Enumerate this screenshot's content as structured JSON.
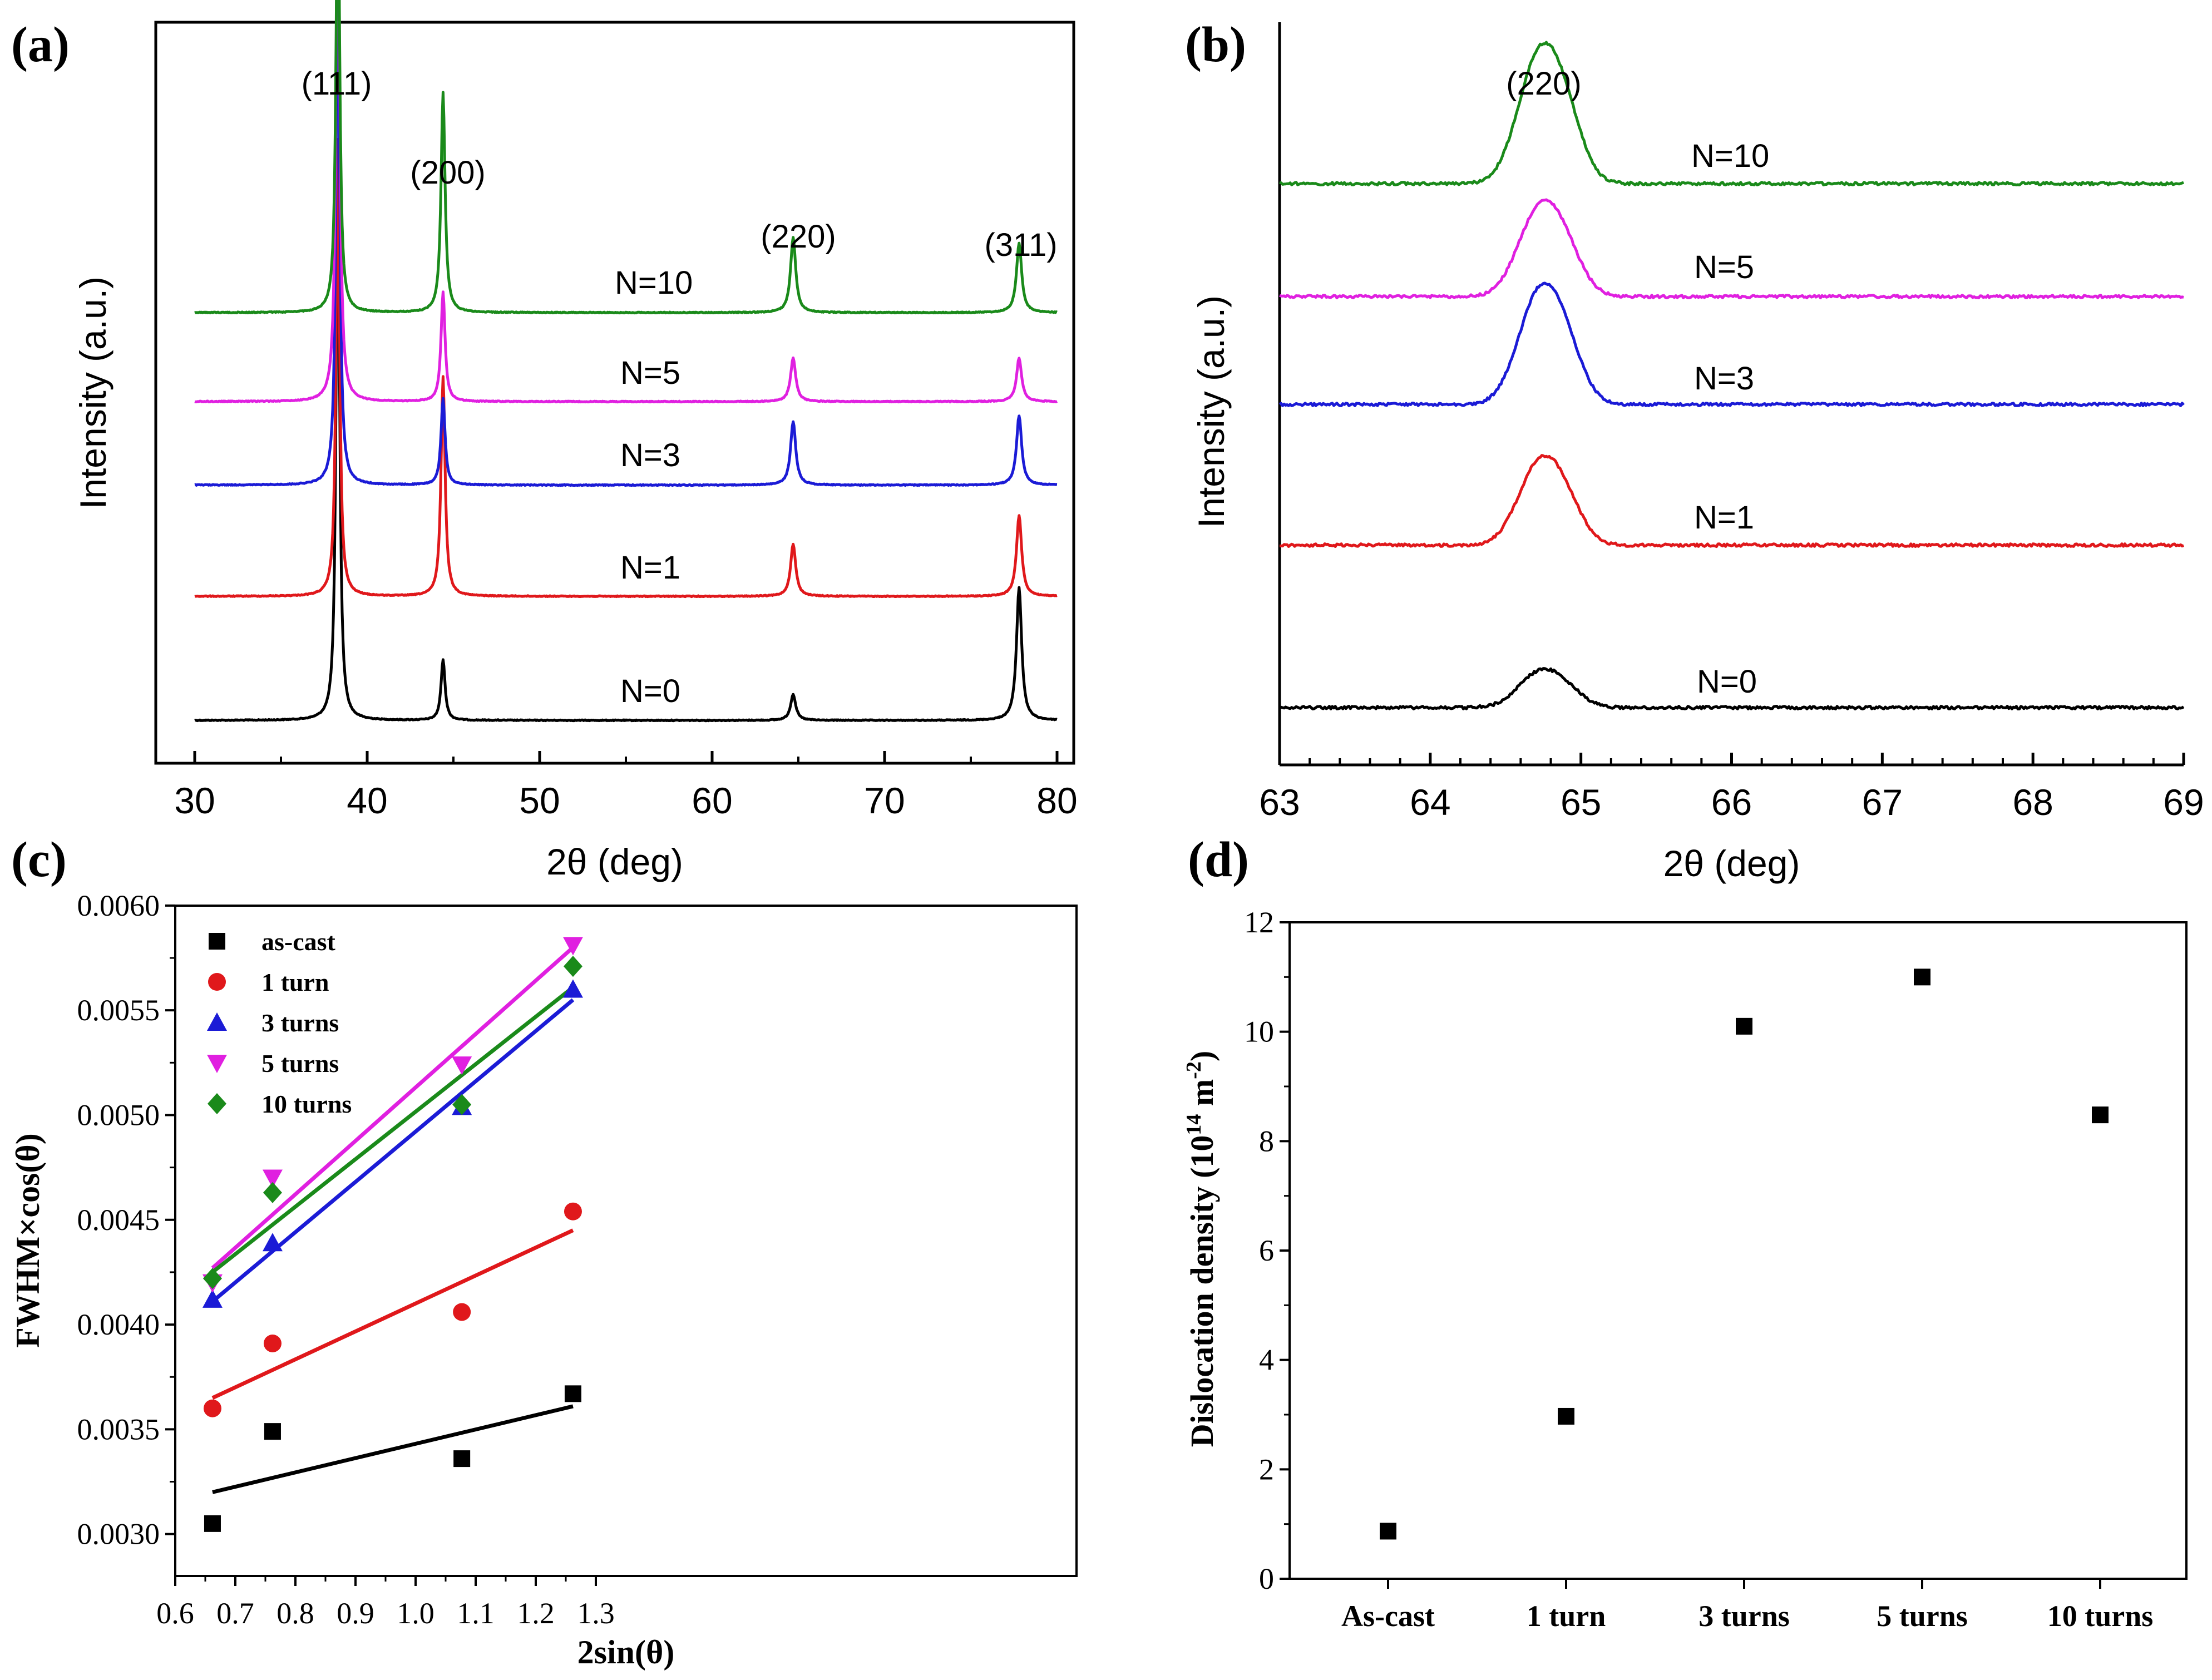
{
  "figure": {
    "panels": [
      "(a)",
      "(b)",
      "(c)",
      "(d)"
    ]
  },
  "chart_data": [
    {
      "id": "a",
      "panel_label": "(a)",
      "type": "line",
      "xlabel": "2θ (deg)",
      "ylabel": "Intensity (a.u.)",
      "xlim": [
        30,
        80
      ],
      "xticks": [
        "30",
        "40",
        "50",
        "60",
        "70",
        "80"
      ],
      "y_tick_labels": false,
      "peaks": [
        {
          "x": 38.3,
          "label": "(111)"
        },
        {
          "x": 44.4,
          "label": "(200)"
        },
        {
          "x": 64.7,
          "label": "(220)"
        },
        {
          "x": 77.8,
          "label": "(311)"
        }
      ],
      "series": [
        {
          "name": "N=0",
          "color": "#000000",
          "peak_heights": [
            1.0,
            0.105,
            0.045,
            0.23
          ]
        },
        {
          "name": "N=1",
          "color": "#e0181b",
          "peak_heights": [
            0.79,
            0.38,
            0.09,
            0.14
          ]
        },
        {
          "name": "N=3",
          "color": "#1b1bd6",
          "peak_heights": [
            0.95,
            0.15,
            0.11,
            0.12
          ]
        },
        {
          "name": "N=5",
          "color": "#e020e0",
          "peak_heights": [
            1.02,
            0.19,
            0.075,
            0.075
          ]
        },
        {
          "name": "N=10",
          "color": "#1a8a1a",
          "peak_heights": [
            0.81,
            0.38,
            0.13,
            0.12
          ]
        }
      ]
    },
    {
      "id": "b",
      "panel_label": "(b)",
      "type": "line",
      "xlabel": "2θ (deg)",
      "ylabel": "Intensity (a.u.)",
      "xlim": [
        63,
        69
      ],
      "xticks": [
        "63",
        "64",
        "65",
        "66",
        "67",
        "68",
        "69"
      ],
      "y_tick_labels": false,
      "peak": {
        "x": 64.72,
        "label": "(220)"
      },
      "series": [
        {
          "name": "N=0",
          "color": "#000000",
          "peak_height": 0.06
        },
        {
          "name": "N=1",
          "color": "#e0181b",
          "peak_height": 0.14
        },
        {
          "name": "N=3",
          "color": "#1b1bd6",
          "peak_height": 0.19
        },
        {
          "name": "N=5",
          "color": "#e020e0",
          "peak_height": 0.15
        },
        {
          "name": "N=10",
          "color": "#1a8a1a",
          "peak_height": 0.22
        }
      ]
    },
    {
      "id": "c",
      "panel_label": "(c)",
      "type": "scatter",
      "xlabel": "2sin(θ)",
      "ylabel": "FWHM×cos(θ)",
      "xlim": [
        0.6,
        1.35
      ],
      "ylim": [
        0.0028,
        0.006
      ],
      "xticks": [
        "0.6",
        "0.7",
        "0.8",
        "0.9",
        "1.0",
        "1.1",
        "1.2",
        "1.3"
      ],
      "yticks": [
        "0.0030",
        "0.0035",
        "0.0040",
        "0.0045",
        "0.0050",
        "0.0055",
        "0.0060"
      ],
      "legend_position": "top-left",
      "x": [
        0.662,
        0.762,
        1.077,
        1.262
      ],
      "series": [
        {
          "name": "as-cast",
          "marker": "square",
          "color": "#000000",
          "values": [
            0.00305,
            0.00349,
            0.00336,
            0.00367
          ],
          "fit": [
            0.0032,
            0.00361
          ]
        },
        {
          "name": "1 turn",
          "marker": "circle",
          "color": "#e0181b",
          "values": [
            0.0036,
            0.00391,
            0.00406,
            0.00454
          ],
          "fit": [
            0.00365,
            0.00445
          ]
        },
        {
          "name": "3 turns",
          "marker": "triangle-up",
          "color": "#1b1bd6",
          "values": [
            0.00412,
            0.00439,
            0.00504,
            0.0056
          ],
          "fit": [
            0.00411,
            0.00555
          ]
        },
        {
          "name": "5 turns",
          "marker": "triangle-down",
          "color": "#e020e0",
          "values": [
            0.0042,
            0.0047,
            0.00524,
            0.00581
          ],
          "fit": [
            0.00427,
            0.0058
          ]
        },
        {
          "name": "10 turns",
          "marker": "diamond",
          "color": "#1a8a1a",
          "values": [
            0.00422,
            0.00463,
            0.00505,
            0.00571
          ],
          "fit": [
            0.00425,
            0.00561
          ]
        }
      ]
    },
    {
      "id": "d",
      "panel_label": "(d)",
      "type": "scatter",
      "xlabel": "",
      "ylabel_parts": {
        "before": "Dislocation density (10",
        "sup1": "14",
        "mid": " m",
        "sup2": "-2",
        "after": ")"
      },
      "ylim": [
        0,
        12
      ],
      "yticks": [
        "0",
        "2",
        "4",
        "6",
        "8",
        "10",
        "12"
      ],
      "categories": [
        "As-cast",
        "1 turn",
        "3 turns",
        "5 turns",
        "10 turns"
      ],
      "values": [
        0.87,
        2.97,
        10.1,
        11.0,
        8.48
      ],
      "marker": "square",
      "color": "#000000"
    }
  ]
}
